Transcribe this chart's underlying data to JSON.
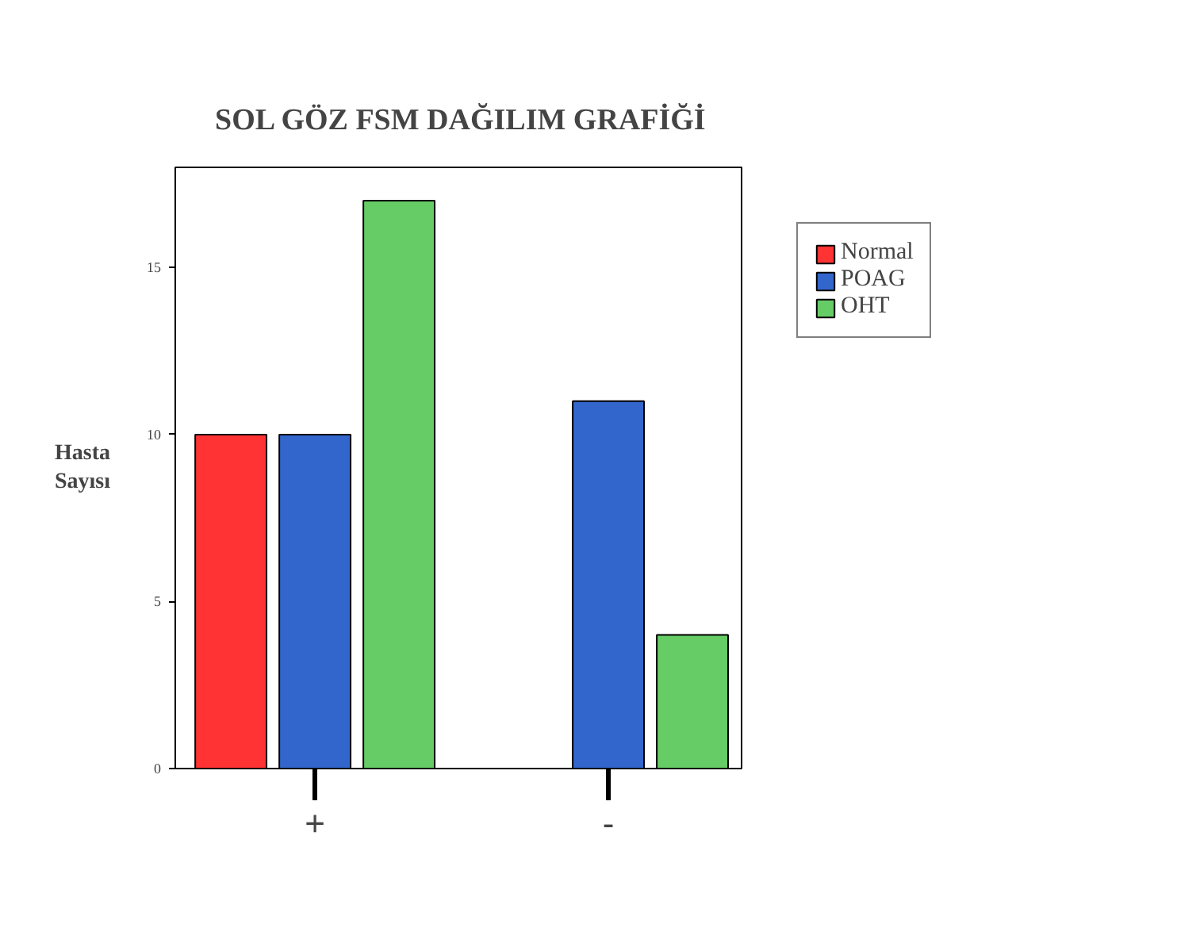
{
  "chart_data": {
    "type": "bar",
    "title": "SOL GÖZ FSM DAĞILIM GRAFİĞİ",
    "ylabel": "Hasta Sayısı",
    "categories": [
      "+",
      "-"
    ],
    "series": [
      {
        "name": "Normal",
        "color": "#ff3333",
        "values": [
          10,
          null
        ]
      },
      {
        "name": "POAG",
        "color": "#3366cc",
        "values": [
          10,
          11
        ]
      },
      {
        "name": "OHT",
        "color": "#66cc66",
        "values": [
          17,
          4
        ]
      }
    ],
    "ylim": [
      0,
      18
    ],
    "yticks": [
      0,
      5,
      10,
      15
    ],
    "grid": false,
    "legend": "right"
  }
}
